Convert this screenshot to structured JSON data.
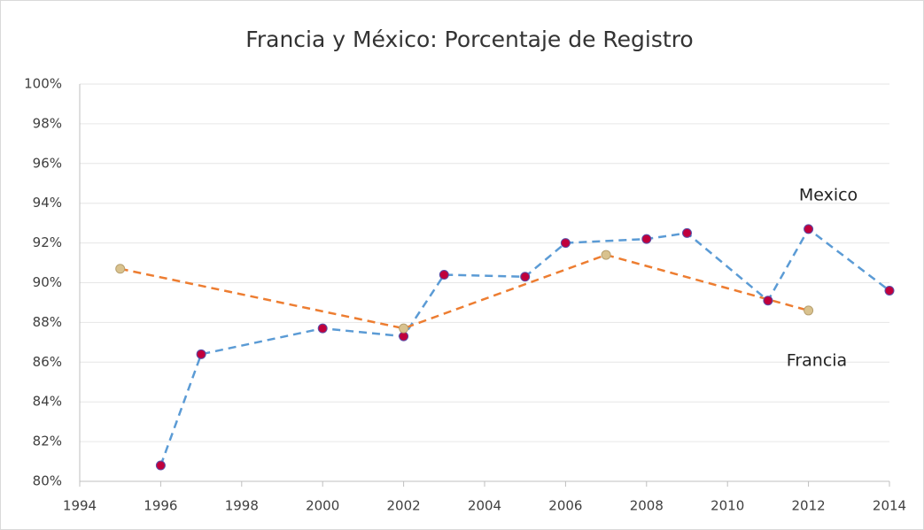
{
  "chart_data": {
    "type": "line",
    "title": "Francia y México: Porcentaje de Registro",
    "series": [
      {
        "name": "Mexico",
        "color": "#5b9bd5",
        "marker_color": "#c0003c",
        "marker_edge": "#5b4fa8",
        "x": [
          1996,
          1997,
          2000,
          2002,
          2003,
          2005,
          2006,
          2008,
          2009,
          2011,
          2012,
          2014
        ],
        "values": [
          80.8,
          86.4,
          87.7,
          87.3,
          90.4,
          90.3,
          92.0,
          92.2,
          92.5,
          89.1,
          92.7,
          89.6
        ]
      },
      {
        "name": "Francia",
        "color": "#ed7d31",
        "marker_color": "#d9c28e",
        "marker_edge": "#b7a070",
        "x": [
          1995,
          2002,
          2007,
          2012
        ],
        "values": [
          90.7,
          87.7,
          91.4,
          88.6
        ]
      }
    ],
    "xlim": [
      1994,
      2014
    ],
    "xticks": [
      1994,
      1996,
      1998,
      2000,
      2002,
      2004,
      2006,
      2008,
      2010,
      2012,
      2014
    ],
    "ylim": [
      80,
      100
    ],
    "yticks": [
      {
        "value": 80,
        "label": "80%"
      },
      {
        "value": 82,
        "label": "82%"
      },
      {
        "value": 84,
        "label": "84%"
      },
      {
        "value": 86,
        "label": "86%"
      },
      {
        "value": 88,
        "label": "88%"
      },
      {
        "value": 90,
        "label": "90%"
      },
      {
        "value": 92,
        "label": "92%"
      },
      {
        "value": 94,
        "label": "94%"
      },
      {
        "value": 96,
        "label": "96%"
      },
      {
        "value": 98,
        "label": "98%"
      },
      {
        "value": 100,
        "label": "100%"
      }
    ],
    "grid": true
  }
}
